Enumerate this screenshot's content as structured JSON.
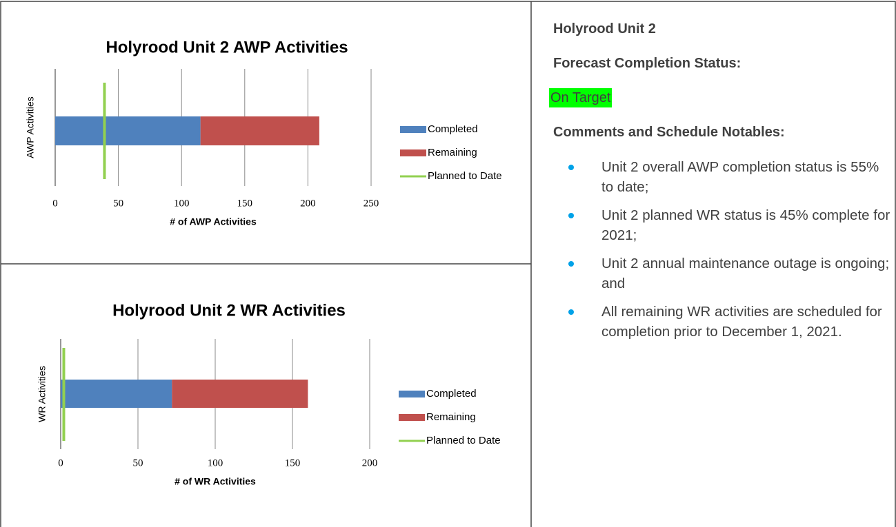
{
  "chart_data": [
    {
      "type": "bar",
      "orientation": "horizontal",
      "stacked": true,
      "title": "Holyrood Unit 2 AWP Activities",
      "xlabel": "# of AWP Activities",
      "ylabel": "AWP Activities",
      "categories": [
        null
      ],
      "series": [
        {
          "name": "Completed",
          "color": "#4f81bd",
          "values": [
            115
          ]
        },
        {
          "name": "Remaining",
          "color": "#c0504d",
          "values": [
            94
          ]
        },
        {
          "name": "Planned to Date",
          "color": "#92d050",
          "type": "line",
          "values": [
            39
          ]
        }
      ],
      "xlim": [
        0,
        250
      ],
      "xticks": [
        0,
        50,
        100,
        150,
        200,
        250
      ],
      "grid": true,
      "legend": "right"
    },
    {
      "type": "bar",
      "orientation": "horizontal",
      "stacked": true,
      "title": "Holyrood Unit 2 WR Activities",
      "xlabel": "# of WR Activities",
      "ylabel": "WR Activities",
      "categories": [
        null
      ],
      "series": [
        {
          "name": "Completed",
          "color": "#4f81bd",
          "values": [
            72
          ]
        },
        {
          "name": "Remaining",
          "color": "#c0504d",
          "values": [
            88
          ]
        },
        {
          "name": "Planned to Date",
          "color": "#92d050",
          "type": "line",
          "values": [
            2
          ]
        }
      ],
      "xlim": [
        0,
        200
      ],
      "xticks": [
        0,
        50,
        100,
        150,
        200
      ],
      "grid": true,
      "legend": "right"
    }
  ],
  "panel": {
    "heading": "Holyrood Unit 2",
    "status_label": "Forecast Completion Status:",
    "status": "On Target",
    "comments_label": "Comments and Schedule Notables:",
    "bullets": [
      "Unit 2 overall AWP completion status is 55% to date;",
      "Unit 2 planned WR status is 45% complete for 2021;",
      "Unit 2 annual maintenance outage is ongoing; and",
      "All remaining WR activities are scheduled for completion prior to December 1, 2021."
    ]
  }
}
